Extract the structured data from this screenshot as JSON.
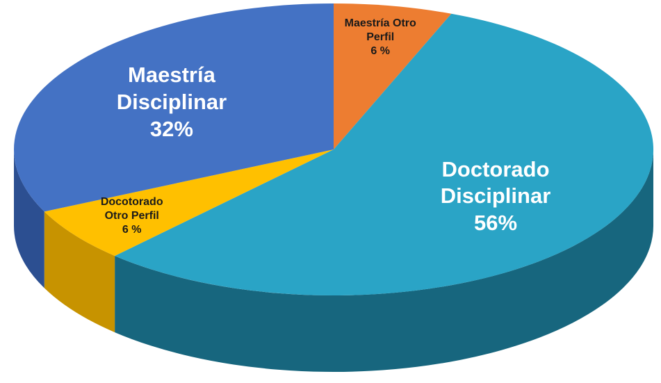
{
  "chart_data": {
    "type": "pie",
    "categories": [
      "Maestría Otro Perfil",
      "Doctorado Disciplinar",
      "Docotorado Otro Perfil",
      "Maestría Disciplinar"
    ],
    "values": [
      6,
      56,
      6,
      32
    ],
    "value_labels": [
      "6 %",
      "56%",
      "6 %",
      "32%"
    ],
    "colors": [
      "#ed7d31",
      "#2aa4c6",
      "#ffc000",
      "#4472c4"
    ],
    "side_colors": [
      "#b85a1c",
      "#17667e",
      "#c79300",
      "#2c4f91"
    ]
  }
}
